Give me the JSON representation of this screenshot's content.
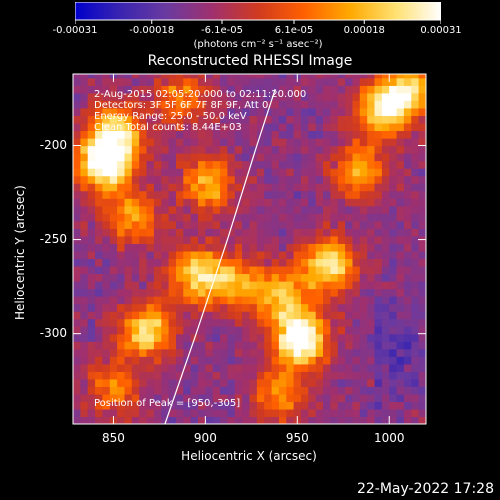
{
  "colorbar": {
    "tick_labels": [
      "-0.00031",
      "-0.00018",
      "-6.1e-05",
      "6.1e-05",
      "0.00018",
      "0.00031"
    ],
    "tick_values": [
      -0.00031,
      -0.00018,
      -6.1e-05,
      6.1e-05,
      0.00018,
      0.00031
    ],
    "range": [
      -0.00031,
      0.00031
    ],
    "units_label": "(photons cm⁻² s⁻¹ asec⁻²)",
    "colormap_stops": [
      "#0000cc",
      "#3a25b0",
      "#6a3aa0",
      "#a0306e",
      "#d03a20",
      "#ff6000",
      "#ffa800",
      "#ffe070",
      "#ffffff"
    ]
  },
  "chart_data": {
    "type": "heatmap",
    "title": "Reconstructed RHESSI Image",
    "xlabel": "Heliocentric X (arcsec)",
    "ylabel": "Heliocentric Y (arcsec)",
    "x_ticks": [
      850,
      900,
      950,
      1000
    ],
    "y_ticks": [
      -200,
      -250,
      -300
    ],
    "xlim": [
      828,
      1020
    ],
    "ylim": [
      -348,
      -162
    ],
    "annotations": [
      "2-Aug-2015 02:05:20.000 to 02:11:20.000",
      "Detectors: 3F 5F 6F 7F 8F 9F, Att 0",
      "Energy Range: 25.0 - 50.0 keV",
      "Clean    Total counts: 8.44E+03"
    ],
    "peak_label": "Position of Peak = [950,-305]",
    "peak": [
      950,
      -305
    ],
    "emission_sources": [
      {
        "x": 843,
        "y": -212,
        "level": 0.95
      },
      {
        "x": 850,
        "y": -195,
        "level": 0.7
      },
      {
        "x": 858,
        "y": -240,
        "level": 0.55
      },
      {
        "x": 866,
        "y": -300,
        "level": 0.75
      },
      {
        "x": 848,
        "y": -330,
        "level": 0.45
      },
      {
        "x": 900,
        "y": -222,
        "level": 0.6
      },
      {
        "x": 893,
        "y": -270,
        "level": 0.7
      },
      {
        "x": 915,
        "y": -275,
        "level": 0.55
      },
      {
        "x": 940,
        "y": -282,
        "level": 0.6
      },
      {
        "x": 950,
        "y": -305,
        "level": 1.0
      },
      {
        "x": 965,
        "y": -265,
        "level": 0.8
      },
      {
        "x": 982,
        "y": -215,
        "level": 0.55
      },
      {
        "x": 995,
        "y": -182,
        "level": 0.75
      },
      {
        "x": 1010,
        "y": -172,
        "level": 0.65
      },
      {
        "x": 938,
        "y": -335,
        "level": 0.5
      },
      {
        "x": 885,
        "y": -176,
        "level": 0.45
      }
    ],
    "limb_curve": [
      [
        878,
        -348
      ],
      [
        895,
        -300
      ],
      [
        912,
        -250
      ],
      [
        928,
        -200
      ],
      [
        938,
        -170
      ]
    ]
  },
  "timestamp": "22-May-2022 17:28"
}
